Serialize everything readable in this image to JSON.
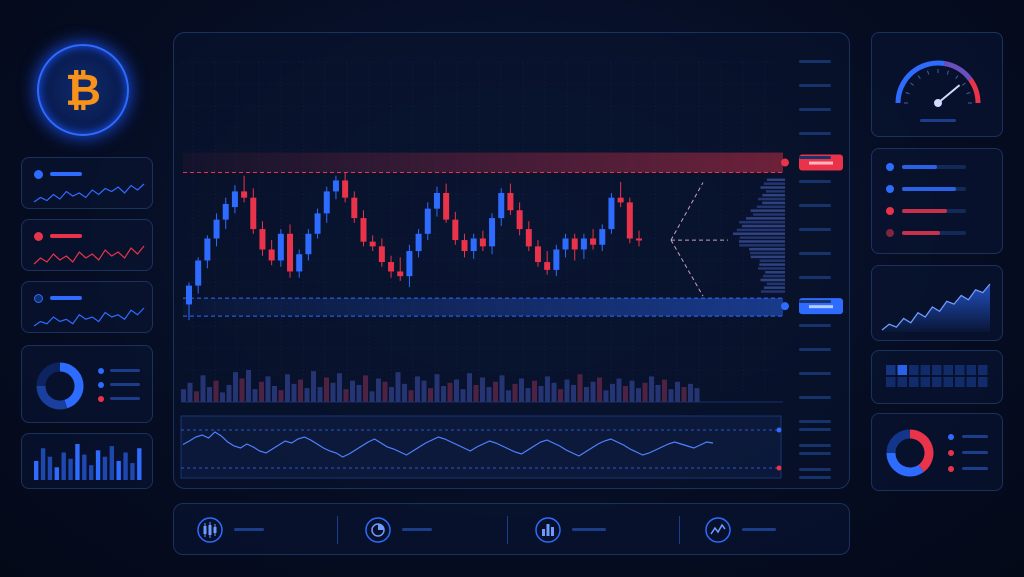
{
  "theme": {
    "background": "#060d22",
    "panel_border": "#2c4a86",
    "bull_color": "#2e6bff",
    "bear_color": "#e8334a",
    "bitcoin_orange": "#f7931a",
    "resistance_color": "#e8334a",
    "support_color": "#2e6bff"
  },
  "icons": {
    "logo": "bitcoin-icon",
    "gauge": "speedometer-icon",
    "bottom": [
      "candlestick-icon",
      "pie-chart-icon",
      "bar-chart-icon",
      "line-chart-icon"
    ]
  },
  "chart_data": [
    {
      "type": "candlestick",
      "title": "",
      "xlabel": "",
      "ylabel": "",
      "grid": true,
      "ylim": [
        0,
        100
      ],
      "resistance_level": 92,
      "support_level": 12,
      "candles": [
        {
          "o": 8,
          "h": 22,
          "l": -2,
          "c": 20
        },
        {
          "o": 20,
          "h": 38,
          "l": 15,
          "c": 36
        },
        {
          "o": 36,
          "h": 52,
          "l": 31,
          "c": 50
        },
        {
          "o": 50,
          "h": 66,
          "l": 45,
          "c": 62
        },
        {
          "o": 62,
          "h": 76,
          "l": 56,
          "c": 72
        },
        {
          "o": 70,
          "h": 84,
          "l": 66,
          "c": 80
        },
        {
          "o": 80,
          "h": 90,
          "l": 73,
          "c": 76
        },
        {
          "o": 76,
          "h": 82,
          "l": 53,
          "c": 56
        },
        {
          "o": 56,
          "h": 61,
          "l": 39,
          "c": 43
        },
        {
          "o": 43,
          "h": 49,
          "l": 33,
          "c": 36
        },
        {
          "o": 36,
          "h": 56,
          "l": 32,
          "c": 53
        },
        {
          "o": 53,
          "h": 59,
          "l": 25,
          "c": 29
        },
        {
          "o": 29,
          "h": 43,
          "l": 25,
          "c": 40
        },
        {
          "o": 40,
          "h": 56,
          "l": 36,
          "c": 53
        },
        {
          "o": 53,
          "h": 69,
          "l": 50,
          "c": 66
        },
        {
          "o": 66,
          "h": 83,
          "l": 60,
          "c": 80
        },
        {
          "o": 80,
          "h": 90,
          "l": 75,
          "c": 87
        },
        {
          "o": 87,
          "h": 92,
          "l": 73,
          "c": 76
        },
        {
          "o": 76,
          "h": 80,
          "l": 60,
          "c": 63
        },
        {
          "o": 63,
          "h": 68,
          "l": 45,
          "c": 48
        },
        {
          "o": 48,
          "h": 52,
          "l": 42,
          "c": 45
        },
        {
          "o": 45,
          "h": 50,
          "l": 32,
          "c": 35
        },
        {
          "o": 35,
          "h": 39,
          "l": 25,
          "c": 29
        },
        {
          "o": 29,
          "h": 38,
          "l": 23,
          "c": 26
        },
        {
          "o": 26,
          "h": 46,
          "l": 19,
          "c": 42
        },
        {
          "o": 42,
          "h": 56,
          "l": 38,
          "c": 53
        },
        {
          "o": 53,
          "h": 73,
          "l": 49,
          "c": 69
        },
        {
          "o": 69,
          "h": 83,
          "l": 64,
          "c": 79
        },
        {
          "o": 79,
          "h": 85,
          "l": 60,
          "c": 62
        },
        {
          "o": 62,
          "h": 67,
          "l": 46,
          "c": 49
        },
        {
          "o": 49,
          "h": 53,
          "l": 38,
          "c": 42
        },
        {
          "o": 42,
          "h": 53,
          "l": 37,
          "c": 50
        },
        {
          "o": 50,
          "h": 55,
          "l": 42,
          "c": 45
        },
        {
          "o": 45,
          "h": 66,
          "l": 40,
          "c": 63
        },
        {
          "o": 63,
          "h": 82,
          "l": 58,
          "c": 79
        },
        {
          "o": 79,
          "h": 85,
          "l": 65,
          "c": 68
        },
        {
          "o": 68,
          "h": 73,
          "l": 52,
          "c": 56
        },
        {
          "o": 56,
          "h": 61,
          "l": 42,
          "c": 45
        },
        {
          "o": 45,
          "h": 49,
          "l": 32,
          "c": 35
        },
        {
          "o": 35,
          "h": 42,
          "l": 27,
          "c": 30
        },
        {
          "o": 30,
          "h": 46,
          "l": 26,
          "c": 43
        },
        {
          "o": 43,
          "h": 53,
          "l": 38,
          "c": 50
        },
        {
          "o": 50,
          "h": 53,
          "l": 36,
          "c": 43
        },
        {
          "o": 43,
          "h": 53,
          "l": 37,
          "c": 50
        },
        {
          "o": 50,
          "h": 56,
          "l": 43,
          "c": 46
        },
        {
          "o": 46,
          "h": 59,
          "l": 42,
          "c": 56
        },
        {
          "o": 56,
          "h": 79,
          "l": 53,
          "c": 76
        },
        {
          "o": 76,
          "h": 86,
          "l": 70,
          "c": 73
        },
        {
          "o": 73,
          "h": 76,
          "l": 47,
          "c": 50
        },
        {
          "o": 50,
          "h": 55,
          "l": 45,
          "c": 49
        }
      ]
    },
    {
      "type": "bar",
      "title": "",
      "xlabel": "",
      "ylabel": "",
      "values": [
        12,
        18,
        10,
        25,
        14,
        20,
        9,
        16,
        28,
        22,
        30,
        12,
        19,
        24,
        15,
        11,
        26,
        17,
        21,
        13,
        29,
        14,
        23,
        18,
        27,
        12,
        20,
        16,
        25,
        10,
        22,
        19,
        14,
        28,
        17,
        11,
        24,
        20,
        13,
        26,
        15,
        18,
        21,
        12,
        27,
        16,
        23,
        14,
        19,
        25,
        11,
        17,
        22,
        13,
        20,
        15,
        24,
        18,
        12,
        21,
        16,
        26,
        14,
        19,
        23,
        11,
        17,
        22,
        15,
        20,
        13,
        18,
        24,
        16,
        21,
        12,
        19,
        14,
        17,
        13
      ],
      "bear_flags": [
        0,
        0,
        1,
        0,
        0,
        1,
        0,
        0,
        0,
        1,
        0,
        0,
        1,
        0,
        0,
        1,
        0,
        0,
        1,
        0,
        0,
        0,
        1,
        0,
        0,
        1,
        0,
        0,
        1,
        0,
        0,
        1,
        0,
        0,
        0,
        1,
        0,
        0,
        1,
        0,
        0,
        1,
        0,
        0,
        0,
        1,
        0,
        0,
        1,
        0,
        0,
        1,
        0,
        0,
        1,
        0,
        0,
        0,
        1,
        0,
        0,
        1,
        0,
        0,
        1,
        0,
        0,
        0,
        1,
        0,
        0,
        1,
        0,
        0,
        1,
        0,
        0,
        1,
        0,
        0
      ]
    },
    {
      "type": "line",
      "title": "",
      "xlabel": "",
      "ylabel": "",
      "values": [
        55,
        62,
        70,
        74,
        68,
        80,
        72,
        60,
        52,
        48,
        56,
        50,
        42,
        38,
        46,
        54,
        62,
        58,
        66,
        70,
        64,
        56,
        48,
        42,
        38,
        30,
        36,
        44,
        52,
        60,
        66,
        58,
        50,
        46,
        40,
        34,
        42,
        50,
        58,
        64,
        70,
        66,
        60,
        54,
        48,
        42,
        50,
        56,
        62,
        58,
        52,
        46,
        40,
        36,
        44,
        52,
        60,
        64,
        58,
        52,
        44,
        38,
        32,
        40,
        48,
        56,
        62,
        66,
        60,
        54,
        46,
        40,
        34,
        38,
        44,
        50,
        56,
        60,
        56,
        52,
        48,
        54,
        60,
        58
      ]
    }
  ],
  "left_panel": {
    "mini_charts": [
      {
        "accent": "#2e6bff",
        "values": [
          5,
          8,
          6,
          10,
          7,
          12,
          9,
          11,
          8,
          13,
          10,
          14,
          12,
          15,
          11,
          16,
          13,
          17
        ]
      },
      {
        "accent": "#e8334a",
        "values": [
          6,
          9,
          7,
          11,
          8,
          10,
          7,
          12,
          9,
          11,
          8,
          13,
          10,
          12,
          9,
          14,
          11,
          15
        ]
      },
      {
        "accent": "#2e6bff",
        "values": [
          5,
          7,
          6,
          9,
          7,
          8,
          6,
          10,
          8,
          9,
          7,
          11,
          9,
          10,
          8,
          12,
          10,
          13
        ]
      }
    ],
    "donut": {
      "segments": [
        0.45,
        0.3,
        0.25
      ],
      "colors": [
        "#2e6bff",
        "#1a3f9e",
        "#0e2460"
      ]
    },
    "mini_bars": [
      18,
      30,
      22,
      12,
      26,
      20,
      34,
      24,
      14,
      28,
      22,
      32,
      18,
      26,
      16,
      30
    ]
  },
  "right_panel": {
    "gauge_value": 0.78,
    "progress_bars": [
      {
        "color": "#2e6bff",
        "fill": 0.55
      },
      {
        "color": "#2e6bff",
        "fill": 0.85
      },
      {
        "color": "#e8334a",
        "fill": 0.7
      },
      {
        "color": "#e8334a",
        "fill": 0.6
      }
    ],
    "area_chart": [
      10,
      14,
      12,
      18,
      15,
      22,
      19,
      26,
      23,
      30,
      28,
      34,
      31,
      38,
      36,
      42
    ],
    "heatmap_rows": [
      [
        0.4,
        0.9,
        0.3,
        0.3,
        0.3,
        0.3,
        0.3,
        0.3,
        0.3
      ],
      [
        0.3,
        0.3,
        0.3,
        0.3,
        0.3,
        0.3,
        0.3,
        0.3,
        0.3
      ]
    ],
    "donut": {
      "segments": [
        0.4,
        0.35,
        0.25
      ],
      "colors": [
        "#e8334a",
        "#2e6bff",
        "#14368a"
      ]
    }
  }
}
